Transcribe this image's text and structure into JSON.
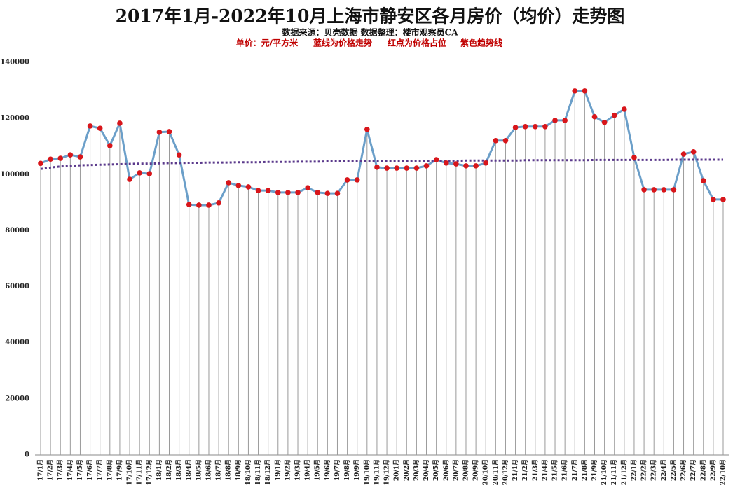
{
  "chart_data": {
    "type": "line",
    "title": "2017年1月-2022年10月上海市静安区各月房价（均价）走势图",
    "source": "数据来源：贝壳数据      数据整理：楼市观察员CA",
    "notes": [
      "单价：元/平方米",
      "蓝线为价格走势",
      "红点为价格占位",
      "紫色趋势线"
    ],
    "categories": [
      "17/1月",
      "17/2月",
      "17/3月",
      "17/4月",
      "17/5月",
      "17/6月",
      "17/7月",
      "17/8月",
      "17/9月",
      "17/10月",
      "17/11月",
      "17/12月",
      "18/1月",
      "18/2月",
      "18/3月",
      "18/4月",
      "18/5月",
      "18/6月",
      "18/7月",
      "18/8月",
      "18/9月",
      "18/10月",
      "18/11月",
      "18/12月",
      "19/1月",
      "19/2月",
      "19/3月",
      "19/4月",
      "19/5月",
      "19/6月",
      "19/7月",
      "19/8月",
      "19/9月",
      "19/10月",
      "19/11月",
      "19/12月",
      "20/1月",
      "20/2月",
      "20/3月",
      "20/4月",
      "20/5月",
      "20/6月",
      "20/7月",
      "20/8月",
      "20/9月",
      "20/10月",
      "20/11月",
      "20/12月",
      "21/1月",
      "21/2月",
      "21/3月",
      "21/4月",
      "21/5月",
      "21/6月",
      "21/7月",
      "21/8月",
      "21/9月",
      "21/10月",
      "21/11月",
      "21/12月",
      "22/1月",
      "22/2月",
      "22/3月",
      "22/4月",
      "22/5月",
      "22/6月",
      "22/7月",
      "22/8月",
      "22/9月",
      "22/10月"
    ],
    "series": [
      {
        "color": "#6b9fc9",
        "marker_color": "#d8161b",
        "values": [
          104000,
          105500,
          105800,
          107000,
          106300,
          117300,
          116500,
          110300,
          118300,
          98300,
          100600,
          100300,
          115100,
          115300,
          107000,
          89300,
          89100,
          89100,
          89900,
          97100,
          96100,
          95600,
          94300,
          94300,
          93600,
          93600,
          93600,
          95300,
          93600,
          93300,
          93300,
          98100,
          98100,
          116100,
          102600,
          102300,
          102300,
          102300,
          102300,
          103100,
          105300,
          104100,
          103800,
          103100,
          103100,
          104100,
          112100,
          112100,
          116800,
          117100,
          117100,
          117100,
          119300,
          119300,
          129800,
          129800,
          120600,
          118600,
          121100,
          123300,
          106100,
          94600,
          94600,
          94600,
          94600,
          107300,
          108100,
          97800,
          91100,
          91100
        ]
      },
      {
        "color": "#5b3a8c",
        "dashed": true,
        "values": [
          102000,
          102500,
          102900,
          103100,
          103300,
          103400,
          103500,
          103600,
          103700,
          103800,
          103900,
          103900,
          104000,
          104100,
          104100,
          104200,
          104200,
          104300,
          104300,
          104300,
          104400,
          104400,
          104400,
          104500,
          104500,
          104500,
          104600,
          104600,
          104600,
          104700,
          104700,
          104700,
          104700,
          104800,
          104800,
          104800,
          104800,
          104800,
          104900,
          104900,
          104900,
          104900,
          104900,
          105000,
          105000,
          105000,
          105000,
          105000,
          105000,
          105100,
          105100,
          105100,
          105100,
          105100,
          105100,
          105100,
          105200,
          105200,
          105200,
          105200,
          105200,
          105200,
          105200,
          105200,
          105300,
          105300,
          105300,
          105300,
          105300,
          105300
        ]
      }
    ],
    "ylim": [
      0,
      140000
    ],
    "yticks": [
      0,
      20000,
      40000,
      60000,
      80000,
      100000,
      120000,
      140000
    ]
  }
}
